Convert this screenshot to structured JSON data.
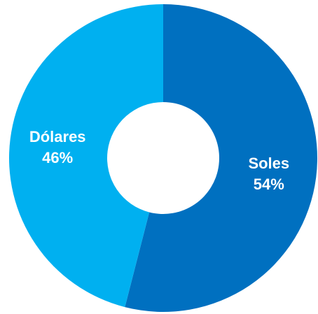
{
  "chart_data": {
    "type": "pie",
    "donut": true,
    "title": "",
    "slices": [
      {
        "label": "Soles",
        "value": 54,
        "value_label": "54%",
        "color": "#0070c0"
      },
      {
        "label": "Dólares",
        "value": 46,
        "value_label": "46%",
        "color": "#00b0f0"
      }
    ],
    "legend": "none",
    "start": "top",
    "direction": "clockwise"
  }
}
